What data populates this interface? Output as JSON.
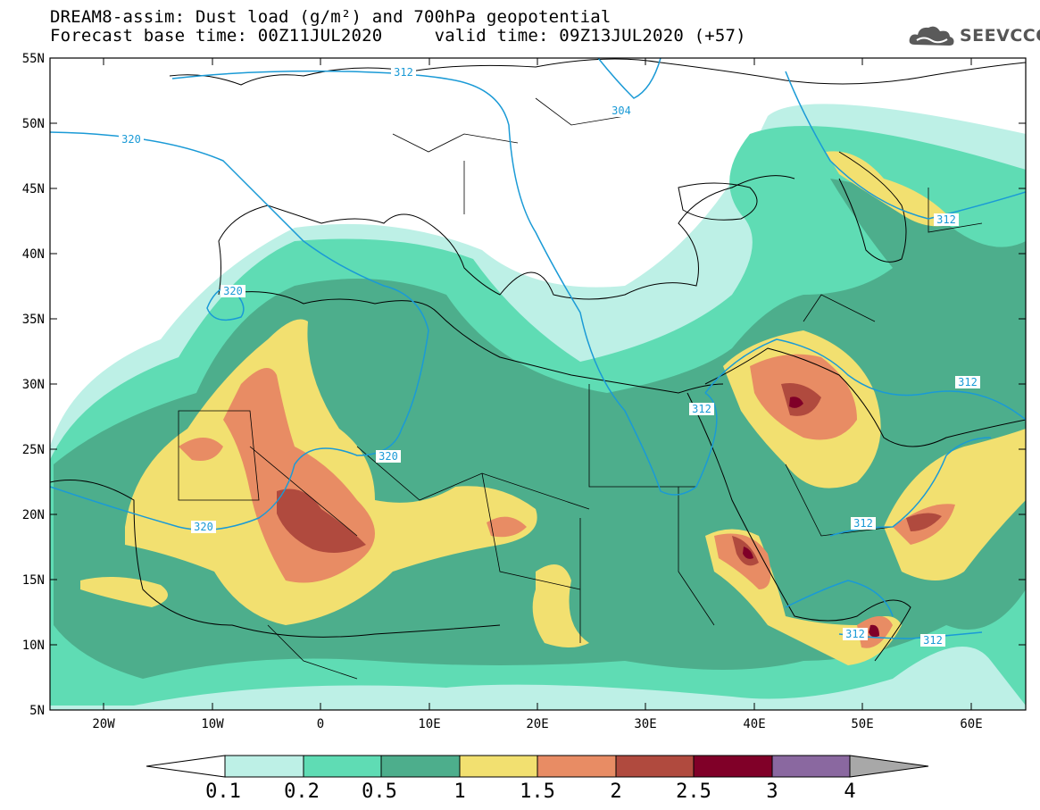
{
  "title": {
    "line1": "DREAM8-assim: Dust load (g/m²) and 700hPa geopotential",
    "line2": "Forecast base time: 00Z11JUL2020     valid time: 09Z13JUL2020 (+57)"
  },
  "logo": {
    "text": "SEEVCCC",
    "icon": "cloud-icon"
  },
  "axes": {
    "lat_labels": [
      "55N",
      "50N",
      "45N",
      "40N",
      "35N",
      "30N",
      "25N",
      "20N",
      "15N",
      "10N",
      "5N"
    ],
    "lon_labels": [
      "20W",
      "10W",
      "0",
      "10E",
      "20E",
      "30E",
      "40E",
      "50E",
      "60E"
    ]
  },
  "contour_labels": [
    "312",
    "304",
    "320",
    "320",
    "320",
    "320",
    "312",
    "312",
    "312",
    "312",
    "312",
    "312"
  ],
  "colorbar": {
    "ticks": [
      "0.1",
      "0.2",
      "0.5",
      "1",
      "1.5",
      "2",
      "2.5",
      "3",
      "4"
    ],
    "colors": [
      "#bdf0e6",
      "#5fdcb4",
      "#4dae8c",
      "#f2e070",
      "#e88c64",
      "#b04a3e",
      "#800028",
      "#8a68a0"
    ],
    "under_color": "#ffffff",
    "over_color": "#a8a8a8"
  },
  "map_colors": {
    "c01": "#bdf0e6",
    "c02": "#5fdcb4",
    "c05": "#4dae8c",
    "c1": "#f2e070",
    "c15": "#e88c64",
    "c2": "#b04a3e",
    "c25": "#800028",
    "contour": "#1a9ad6"
  }
}
